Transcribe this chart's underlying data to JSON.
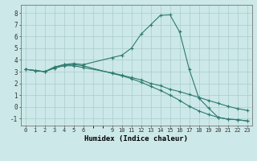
{
  "xlabel": "Humidex (Indice chaleur)",
  "background_color": "#cce8e8",
  "grid_color": "#aacccc",
  "line_color": "#2d7a6e",
  "series": [
    {
      "x": [
        0,
        1,
        2,
        3,
        4,
        5,
        6,
        9,
        10,
        11,
        12,
        13,
        14,
        15,
        16,
        17,
        18,
        19,
        20,
        21,
        22,
        23
      ],
      "y": [
        3.2,
        3.1,
        3.0,
        3.3,
        3.6,
        3.7,
        3.6,
        4.2,
        4.4,
        5.0,
        6.2,
        7.0,
        7.8,
        7.85,
        6.4,
        3.2,
        0.75,
        -0.1,
        -0.9,
        -1.05,
        -1.1,
        -1.2
      ]
    },
    {
      "x": [
        0,
        1,
        2,
        3,
        4,
        5,
        6,
        9,
        10,
        11,
        12,
        13,
        14,
        15,
        16,
        17,
        18,
        19,
        20,
        21,
        22,
        23
      ],
      "y": [
        3.2,
        3.1,
        3.0,
        3.3,
        3.5,
        3.5,
        3.35,
        2.9,
        2.7,
        2.5,
        2.3,
        2.0,
        1.8,
        1.5,
        1.3,
        1.05,
        0.8,
        0.55,
        0.3,
        0.05,
        -0.15,
        -0.3
      ]
    },
    {
      "x": [
        0,
        1,
        2,
        3,
        4,
        5,
        6,
        9,
        10,
        11,
        12,
        13,
        14,
        15,
        16,
        17,
        18,
        19,
        20,
        21,
        22,
        23
      ],
      "y": [
        3.2,
        3.1,
        3.0,
        3.4,
        3.6,
        3.6,
        3.5,
        2.85,
        2.65,
        2.4,
        2.1,
        1.75,
        1.4,
        1.0,
        0.55,
        0.05,
        -0.35,
        -0.65,
        -0.9,
        -1.05,
        -1.1,
        -1.2
      ]
    }
  ],
  "xticks": [
    0,
    1,
    2,
    3,
    4,
    5,
    6,
    9,
    10,
    11,
    12,
    13,
    14,
    15,
    16,
    17,
    18,
    19,
    20,
    21,
    22,
    23
  ],
  "xtick_labels": [
    "0",
    "1",
    "2",
    "3",
    "4",
    "5",
    "6",
    "9",
    "10",
    "11",
    "12",
    "13",
    "14",
    "15",
    "16",
    "17",
    "18",
    "19",
    "20",
    "21",
    "22",
    "23"
  ],
  "yticks": [
    -1,
    0,
    1,
    2,
    3,
    4,
    5,
    6,
    7,
    8
  ],
  "ylim": [
    -1.6,
    8.7
  ],
  "xlim": [
    -0.5,
    23.5
  ],
  "figsize": [
    3.2,
    2.0
  ],
  "dpi": 100
}
